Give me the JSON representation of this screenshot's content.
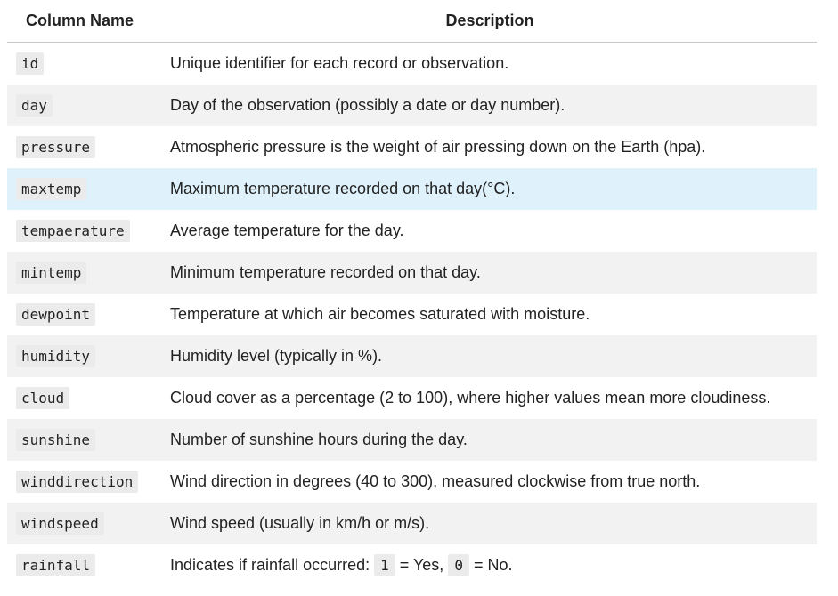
{
  "headers": {
    "column_name": "Column Name",
    "description": "Description"
  },
  "rows": [
    {
      "name": "id",
      "description": "Unique identifier for each record or observation."
    },
    {
      "name": "day",
      "description": "Day of the observation (possibly a date or day number)."
    },
    {
      "name": "pressure",
      "description": "Atmospheric pressure is the weight of air pressing down on the Earth (hpa)."
    },
    {
      "name": "maxtemp",
      "description": "Maximum temperature recorded on that day(°C)."
    },
    {
      "name": "tempaerature",
      "description": "Average temperature for the day."
    },
    {
      "name": "mintemp",
      "description": "Minimum temperature recorded on that day."
    },
    {
      "name": "dewpoint",
      "description": "Temperature at which air becomes saturated with moisture."
    },
    {
      "name": "humidity",
      "description": "Humidity level (typically in %)."
    },
    {
      "name": "cloud",
      "description": "Cloud cover as a percentage (2 to 100), where higher values mean more cloudiness."
    },
    {
      "name": "sunshine",
      "description": "Number of sunshine hours during the day."
    },
    {
      "name": "winddirection",
      "description": "Wind direction in degrees (40 to 300), measured clockwise from true north."
    },
    {
      "name": "windspeed",
      "description": "Wind speed (usually in km/h or m/s)."
    },
    {
      "name": "rainfall",
      "description_parts": {
        "prefix": "Indicates if rainfall occurred: ",
        "code_yes": "1",
        "yes_text": " = Yes, ",
        "code_no": "0",
        "no_text": " = No."
      }
    }
  ],
  "colors": {
    "stripe": "#f2f2f2",
    "highlight": "#dff2fb",
    "code_bg": "#ebebeb"
  }
}
